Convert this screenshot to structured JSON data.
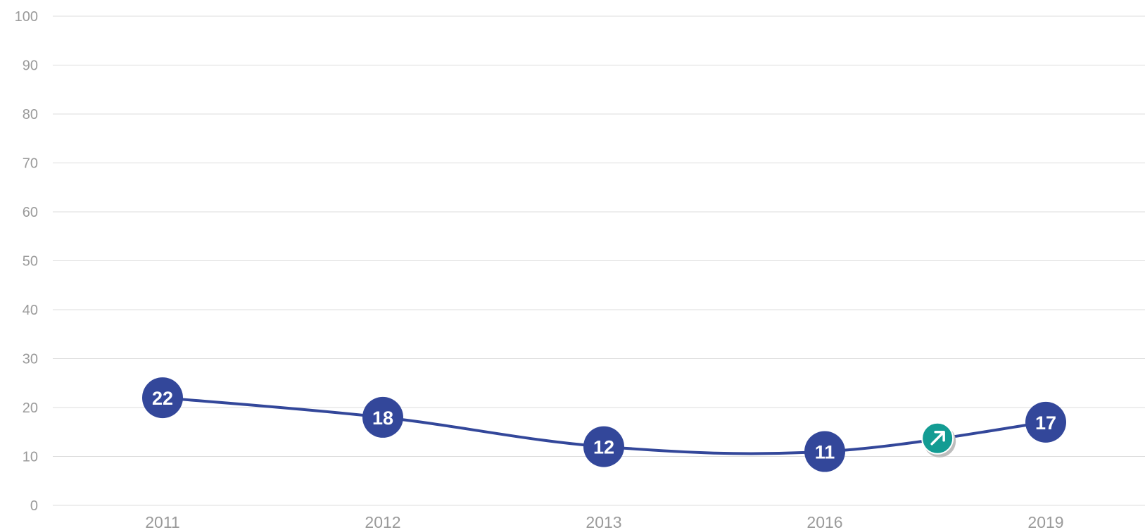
{
  "chart_data": {
    "type": "line",
    "categories": [
      "2011",
      "2012",
      "2013",
      "2016",
      "2019"
    ],
    "series": [
      {
        "values": [
          22,
          18,
          12,
          11,
          17
        ]
      }
    ],
    "ylim": [
      0,
      100
    ],
    "yticks": [
      "0",
      "10",
      "20",
      "30",
      "40",
      "50",
      "60",
      "70",
      "80",
      "90",
      "100"
    ],
    "grid": true,
    "colors": {
      "line": "#33479a",
      "marker": "#33479a",
      "trend_badge": "#139c93"
    },
    "trend_indicator": {
      "icon": "arrow-up-right-icon",
      "direction": "up"
    }
  }
}
